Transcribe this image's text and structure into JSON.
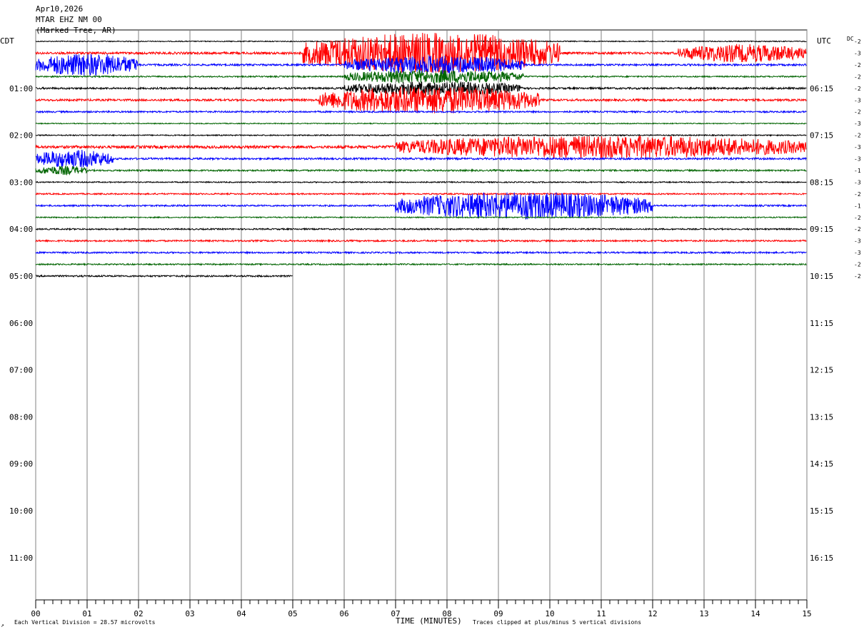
{
  "header": {
    "date": "Apr10,2026",
    "station": "MTAR EHZ NM 00",
    "location": "(Marked Tree, AR)"
  },
  "left_axis_title": "CDT",
  "right_axis_title": "UTC",
  "dc_title": "DC",
  "x_axis_title": "TIME (MINUTES)",
  "footer": {
    "left_note": "Each Vertical Division =   28.57 microvolts",
    "right_note": "Traces clipped at plus/minus 5 vertical divisions",
    "corner_mark": "↗"
  },
  "colors": {
    "trace_cycle": [
      "#000000",
      "#ff0000",
      "#0000ff",
      "#006400"
    ],
    "grid": "#808080",
    "frame": "#000000"
  },
  "chart_data": {
    "type": "line",
    "subtype": "helicorder",
    "x_range_minutes": [
      0,
      15
    ],
    "x_ticks": [
      "00",
      "01",
      "02",
      "03",
      "04",
      "05",
      "06",
      "07",
      "08",
      "09",
      "10",
      "11",
      "12",
      "13",
      "14",
      "15"
    ],
    "rows_per_hour": 4,
    "total_rows": 48,
    "left_hour_labels": [
      "01:00",
      "02:00",
      "03:00",
      "04:00",
      "05:00",
      "06:00",
      "07:00",
      "08:00",
      "09:00",
      "10:00",
      "11:00"
    ],
    "right_hour_labels": [
      "06:15",
      "07:15",
      "08:15",
      "09:15",
      "10:15",
      "11:15",
      "12:15",
      "13:15",
      "14:15",
      "15:15",
      "16:15"
    ],
    "dc_offsets": [
      "-2",
      "-3",
      "-2",
      "-2",
      "-2",
      "-3",
      "-2",
      "-3",
      "-2",
      "-3",
      "-3",
      "-1",
      "-3",
      "-2",
      "-1",
      "-2",
      "-2",
      "-3",
      "-3",
      "-2",
      "-2"
    ],
    "traces": [
      {
        "row": 0,
        "color_index": 0,
        "amplitude": 0.4,
        "end_minute": 15,
        "events": []
      },
      {
        "row": 1,
        "color_index": 1,
        "amplitude": 1.0,
        "end_minute": 15,
        "events": [
          {
            "start": 5.2,
            "end": 10.2,
            "amp": 9
          },
          {
            "start": 12.5,
            "end": 15,
            "amp": 4
          }
        ]
      },
      {
        "row": 2,
        "color_index": 2,
        "amplitude": 0.8,
        "end_minute": 15,
        "events": [
          {
            "start": 0,
            "end": 2.0,
            "amp": 5
          },
          {
            "start": 6.0,
            "end": 9.5,
            "amp": 4
          }
        ]
      },
      {
        "row": 3,
        "color_index": 3,
        "amplitude": 0.6,
        "end_minute": 15,
        "events": [
          {
            "start": 6.0,
            "end": 9.5,
            "amp": 3
          }
        ]
      },
      {
        "row": 4,
        "color_index": 0,
        "amplitude": 0.8,
        "end_minute": 15,
        "events": [
          {
            "start": 6.0,
            "end": 9.5,
            "amp": 3
          }
        ]
      },
      {
        "row": 5,
        "color_index": 1,
        "amplitude": 0.9,
        "end_minute": 15,
        "events": [
          {
            "start": 5.5,
            "end": 9.8,
            "amp": 6
          }
        ]
      },
      {
        "row": 6,
        "color_index": 2,
        "amplitude": 0.7,
        "end_minute": 15,
        "events": []
      },
      {
        "row": 7,
        "color_index": 3,
        "amplitude": 0.4,
        "end_minute": 15,
        "events": []
      },
      {
        "row": 8,
        "color_index": 0,
        "amplitude": 0.5,
        "end_minute": 15,
        "events": []
      },
      {
        "row": 9,
        "color_index": 1,
        "amplitude": 1.2,
        "end_minute": 15,
        "events": [
          {
            "start": 7.0,
            "end": 15,
            "amp": 5
          }
        ]
      },
      {
        "row": 10,
        "color_index": 2,
        "amplitude": 0.8,
        "end_minute": 15,
        "events": [
          {
            "start": 0,
            "end": 1.5,
            "amp": 4
          }
        ]
      },
      {
        "row": 11,
        "color_index": 3,
        "amplitude": 0.7,
        "end_minute": 15,
        "events": [
          {
            "start": 0,
            "end": 1.0,
            "amp": 2
          }
        ]
      },
      {
        "row": 12,
        "color_index": 0,
        "amplitude": 0.5,
        "end_minute": 15,
        "events": []
      },
      {
        "row": 13,
        "color_index": 1,
        "amplitude": 0.6,
        "end_minute": 15,
        "events": []
      },
      {
        "row": 14,
        "color_index": 2,
        "amplitude": 0.7,
        "end_minute": 15,
        "events": [
          {
            "start": 7.0,
            "end": 12.0,
            "amp": 6
          }
        ]
      },
      {
        "row": 15,
        "color_index": 3,
        "amplitude": 0.5,
        "end_minute": 15,
        "events": []
      },
      {
        "row": 16,
        "color_index": 0,
        "amplitude": 0.6,
        "end_minute": 15,
        "events": []
      },
      {
        "row": 17,
        "color_index": 1,
        "amplitude": 0.7,
        "end_minute": 15,
        "events": []
      },
      {
        "row": 18,
        "color_index": 2,
        "amplitude": 0.7,
        "end_minute": 15,
        "events": []
      },
      {
        "row": 19,
        "color_index": 3,
        "amplitude": 0.6,
        "end_minute": 15,
        "events": []
      },
      {
        "row": 20,
        "color_index": 0,
        "amplitude": 0.7,
        "end_minute": 5,
        "events": []
      }
    ]
  }
}
